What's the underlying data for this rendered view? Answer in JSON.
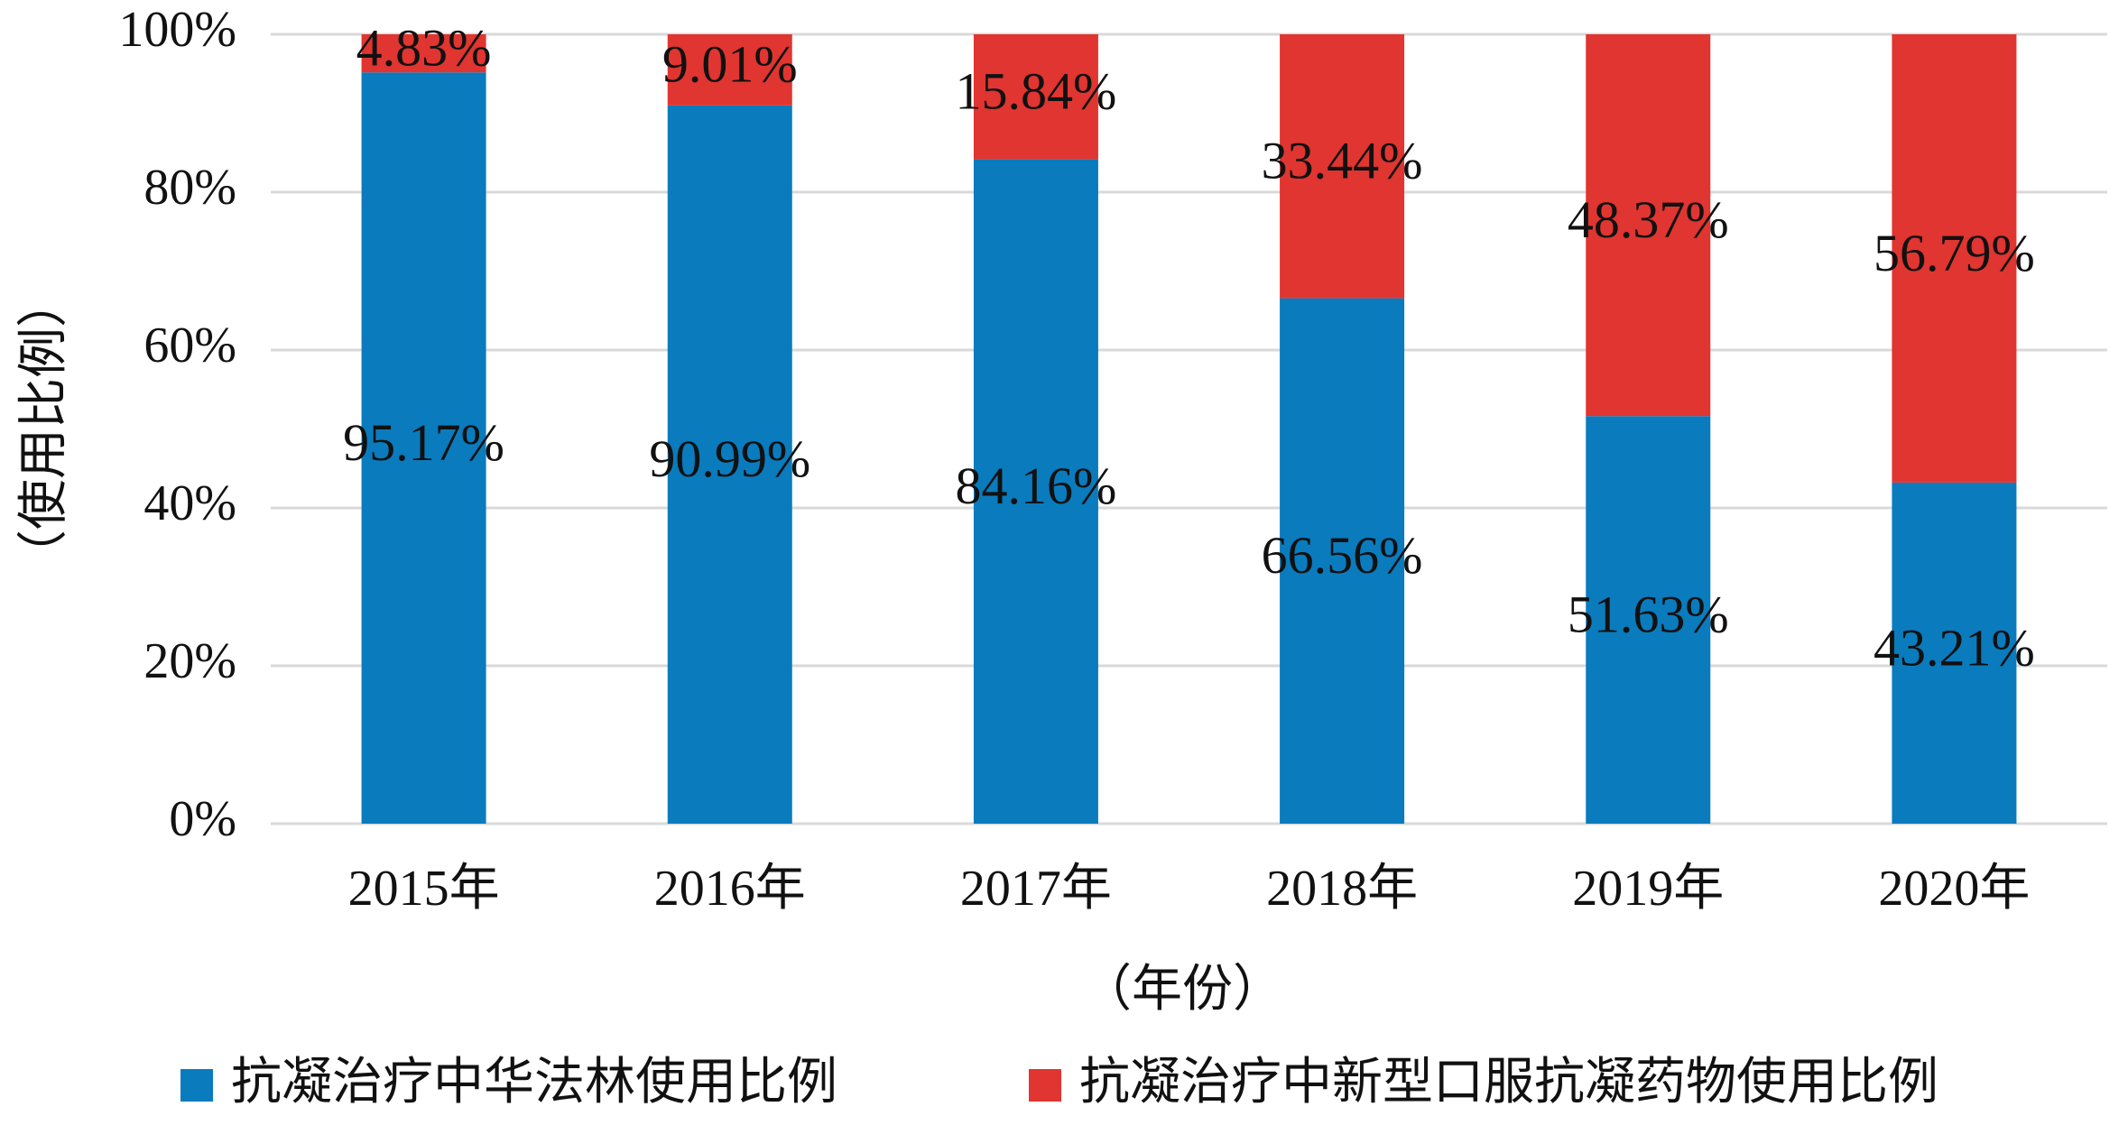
{
  "chart_data": {
    "type": "bar",
    "stacked": true,
    "categories": [
      "2015年",
      "2016年",
      "2017年",
      "2018年",
      "2019年",
      "2020年"
    ],
    "series": [
      {
        "name": "抗凝治疗中华法林使用比例",
        "color": "#0a7bbd",
        "values": [
          95.17,
          90.99,
          84.16,
          66.56,
          51.63,
          43.21
        ],
        "labels": [
          "95.17%",
          "90.99%",
          "84.16%",
          "66.56%",
          "51.63%",
          "43.21%"
        ]
      },
      {
        "name": "抗凝治疗中新型口服抗凝药物使用比例",
        "color": "#e03530",
        "values": [
          4.83,
          9.01,
          15.84,
          33.44,
          48.37,
          56.79
        ],
        "labels": [
          "4.83%",
          "9.01%",
          "15.84%",
          "33.44%",
          "48.37%",
          "56.79%"
        ]
      }
    ],
    "xlabel": "（年份）",
    "ylabel": "（使用比例）",
    "ylim": [
      0,
      100
    ],
    "yticks": [
      0,
      20,
      40,
      60,
      80,
      100
    ],
    "ytick_labels": [
      "0%",
      "20%",
      "40%",
      "60%",
      "80%",
      "100%"
    ],
    "grid": true,
    "gridline_color": "#d9d9d9",
    "legend_position": "bottom"
  }
}
